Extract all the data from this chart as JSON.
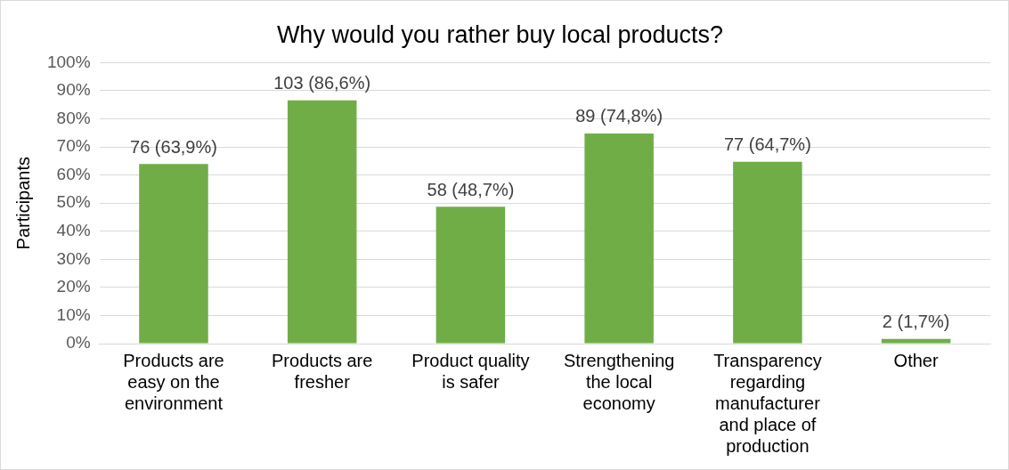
{
  "chart_data": {
    "type": "bar",
    "title": "Why would you rather buy local products?",
    "ylabel": "Participants",
    "categories": [
      "Products are easy on the environment",
      "Products are fresher",
      "Product quality is safer",
      "Strengthening the local economy",
      "Transparency regarding manufacturer and place of production",
      "Other"
    ],
    "values": [
      63.9,
      86.6,
      48.7,
      74.8,
      64.7,
      1.7
    ],
    "value_labels": [
      "76 (63,9%)",
      "103 (86,6%)",
      "58 (48,7%)",
      "89 (74,8%)",
      "77 (64,7%)",
      "2 (1,7%)"
    ],
    "color": "#70ad47",
    "ylim": [
      0,
      100
    ],
    "yticks": [
      {
        "value": 0,
        "label": "0%"
      },
      {
        "value": 10,
        "label": "10%"
      },
      {
        "value": 20,
        "label": "20%"
      },
      {
        "value": 30,
        "label": "30%"
      },
      {
        "value": 40,
        "label": "40%"
      },
      {
        "value": 50,
        "label": "50%"
      },
      {
        "value": 60,
        "label": "60%"
      },
      {
        "value": 70,
        "label": "70%"
      },
      {
        "value": 80,
        "label": "80%"
      },
      {
        "value": 90,
        "label": "90%"
      },
      {
        "value": 100,
        "label": "100%"
      }
    ],
    "grid": "y",
    "legend": false
  }
}
